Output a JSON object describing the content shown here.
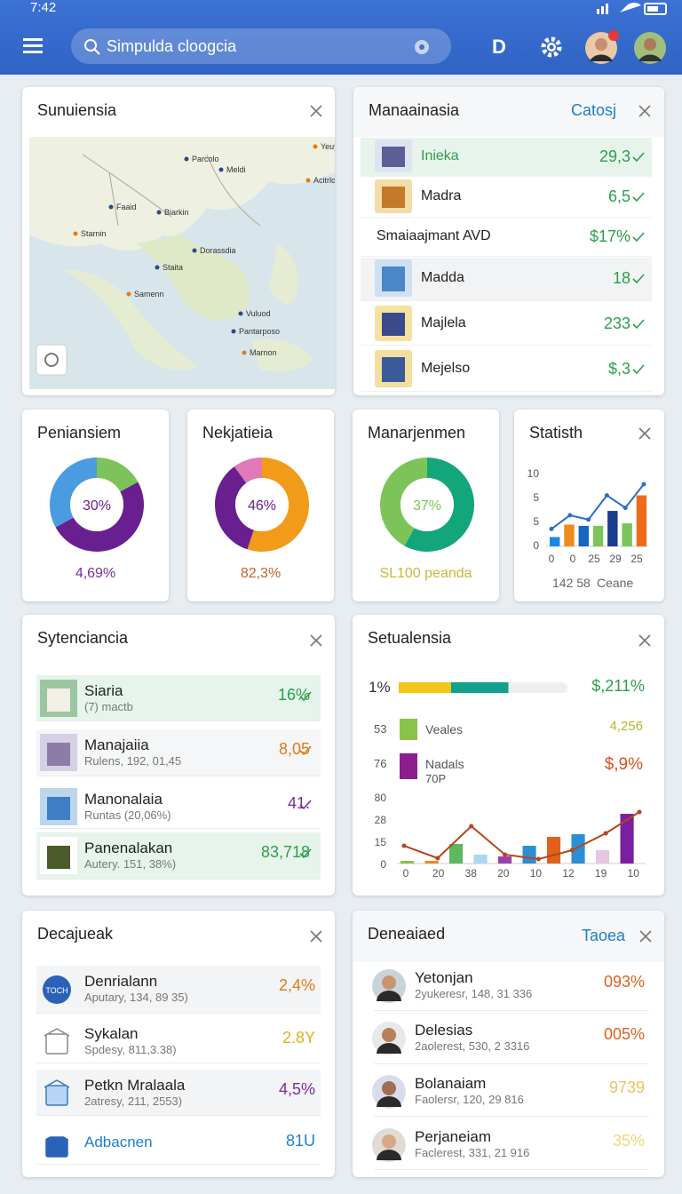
{
  "status_bar": {
    "time": "7:42"
  },
  "header": {
    "search": "Simpulda cloogcia",
    "letter": "D"
  },
  "map_card": {
    "title": "Sunuiensia",
    "labels": [
      "Yeuy",
      "Parcolo",
      "Meldi",
      "Acitrlon",
      "Faaid",
      "Biarkin",
      "Starnin",
      "Dorassdia",
      "Staita",
      "Samenn",
      "Vuluod",
      "Pantarposo",
      "Marnon"
    ]
  },
  "list_card": {
    "title": "Manaainasia",
    "action": "Catosj",
    "items": [
      {
        "name": "Inieka",
        "value": "29,3"
      },
      {
        "name": "Madra",
        "value": "6,5"
      },
      {
        "name": "Smaiaajmant AVD",
        "value": "$17%"
      },
      {
        "name": "Madda",
        "value": "18"
      },
      {
        "name": "Majlela",
        "value": "233"
      },
      {
        "name": "Mejelso",
        "value": "$,3"
      }
    ]
  },
  "donut_cards": [
    {
      "title": "Peniansiem",
      "center_label": "30%",
      "footer": "4,69%",
      "footer_color": "#7b2d9c",
      "segments": [
        {
          "value": 17,
          "color": "#7cc45a"
        },
        {
          "value": 50,
          "color": "#6a1f91"
        },
        {
          "value": 33,
          "color": "#4a9be0"
        }
      ]
    },
    {
      "title": "Nekjatieia",
      "center_label": "46%",
      "footer": "82,3%",
      "footer_color": "#c0642a",
      "segments": [
        {
          "value": 55,
          "color": "#f29b1a"
        },
        {
          "value": 35,
          "color": "#6a1f91"
        },
        {
          "value": 10,
          "color": "#e079b8"
        }
      ]
    },
    {
      "title": "Manarjenmen",
      "center_label": "37%",
      "footer": "SL100 peanda",
      "footer_color": "#c8b93a",
      "segments": [
        {
          "value": 58,
          "color": "#12a67a"
        },
        {
          "value": 42,
          "color": "#7cc45a"
        }
      ]
    }
  ],
  "stat_card": {
    "title": "Statisth",
    "y_labels": [
      "10",
      "5",
      "5",
      "0"
    ],
    "x_labels": [
      "0",
      "0",
      "25",
      "29",
      "25"
    ],
    "ylim": [
      0,
      12
    ],
    "bar_values": [
      1.5,
      3.5,
      3.3,
      3.3,
      5.7,
      3.7,
      8.2
    ],
    "bar_colors": [
      "#1e88e5",
      "#f08a1c",
      "#1565c0",
      "#7cc45a",
      "#1a3c8f",
      "#7cc45a",
      "#f06a1c"
    ],
    "line_values": [
      2.8,
      5,
      4.3,
      8.2,
      6.2,
      10
    ],
    "line_color": "#2a6fc9",
    "footer": "142 58",
    "footer_right": "Ceane"
  },
  "task_card": {
    "title": "Sytenciancia",
    "items": [
      {
        "name": "Siaria",
        "detail": "(7) mactb",
        "value": "16%",
        "color": "#2e9e4a"
      },
      {
        "name": "Manajaiia",
        "detail": "Rulens, 192, 01,45",
        "value": "8,05",
        "color": "#e07b1a"
      },
      {
        "name": "Manonalaia",
        "detail": "Runtas (20,06%)",
        "value": "41.",
        "color": "#7b2d9c"
      },
      {
        "name": "Panenalakan",
        "detail": "Autery. 151, 38%)",
        "value": "83,718",
        "color": "#2e9e4a"
      }
    ]
  },
  "trend_card": {
    "title": "Setualensia",
    "progress_label": "1%",
    "progress_value": "$,211%",
    "progress": [
      31,
      34
    ],
    "progress_colors": [
      "#f5c518",
      "#12a08a"
    ],
    "legend": [
      {
        "tick": "53",
        "name": "Veales",
        "value": "4,256",
        "color": "#8bc34a",
        "value_color": "#b5b530"
      },
      {
        "tick": "76",
        "name": "Nadals",
        "sub": "70P",
        "value": "$,9%",
        "color": "#8e1e8f",
        "value_color": "#d9531e"
      }
    ],
    "y_labels": [
      "80",
      "28",
      "15",
      "0"
    ],
    "x_labels": [
      "0",
      "20",
      "38",
      "20",
      "10",
      "12",
      "19",
      "10"
    ],
    "ylim": [
      0,
      80
    ],
    "bar_values": [
      3.2,
      3.2,
      23.5,
      10.7,
      8.5,
      21.3,
      32,
      35.2,
      16,
      59.7
    ],
    "bar_colors": [
      "#8bc34a",
      "#f08a1c",
      "#5cb85c",
      "#a8d8f0",
      "#9c3fae",
      "#2b8fd6",
      "#e0621a",
      "#2b8fd6",
      "#e6c6e0",
      "#7b1fa2"
    ],
    "line_values": [
      21.3,
      6.4,
      44.8,
      10.7,
      5.3,
      16,
      36.3,
      61.9
    ],
    "line_color": "#b5451b"
  },
  "region_card": {
    "title": "Decajueak",
    "items": [
      {
        "icon": "TOCH",
        "name": "Denrialann",
        "detail": "Aputary, 134, 89 35)",
        "value": "2,4%",
        "color": "#e07b1a"
      },
      {
        "name": "Sykalan",
        "detail": "Spdesy, 811,3.38)",
        "value": "2.8Y",
        "color": "#e0b21a"
      },
      {
        "name": "Petkn Mralaala",
        "detail": "2atresy, 211, 2553)",
        "value": "4,5%",
        "color": "#7b2d9c"
      },
      {
        "name": "Adbacnen",
        "value": "81U",
        "color": "#1e7ec8"
      }
    ]
  },
  "people_card": {
    "title": "Deneaiaed",
    "action": "Taoea",
    "items": [
      {
        "name": "Yetonjan",
        "detail": "2yukeresr, 148, 31 336",
        "value": "093%",
        "color": "#e0621a"
      },
      {
        "name": "Delesias",
        "detail": "2aolerest, 530, 2 3316",
        "value": "005%",
        "color": "#e0621a"
      },
      {
        "name": "Bolanaiam",
        "detail": "Faolersr, 120, 29 816",
        "value": "9739",
        "color": "#f0c060"
      },
      {
        "name": "Perjaneiam",
        "detail": "Faclerest, 331, 21 916",
        "value": "35%",
        "color": "#f5d27a"
      }
    ]
  }
}
